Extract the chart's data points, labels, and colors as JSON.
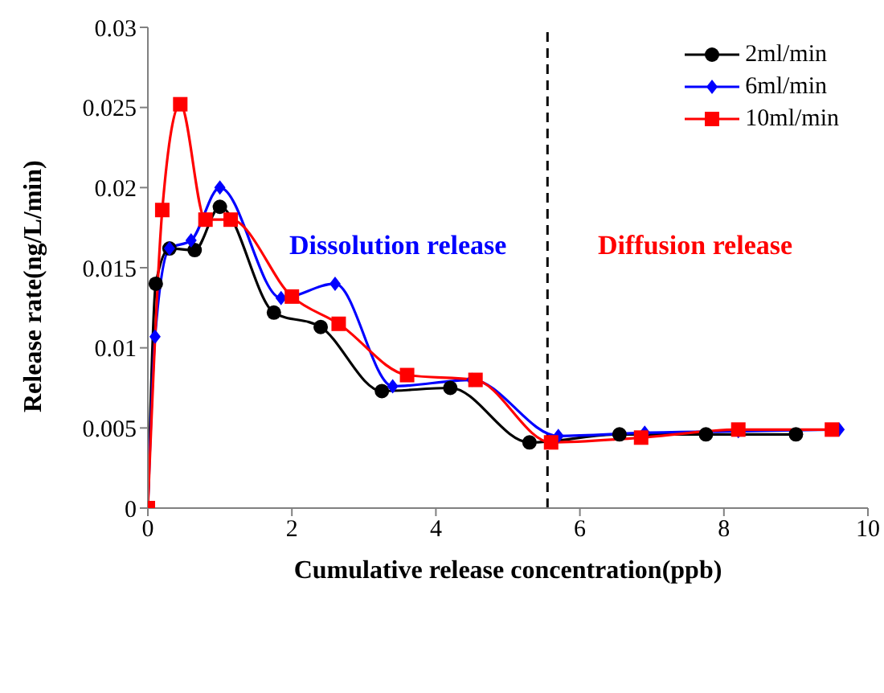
{
  "chart_data": {
    "type": "line",
    "xlabel": "Cumulative release concentration(ppb)",
    "ylabel": "Release rate(ng/L/min)",
    "xlim": [
      0,
      10
    ],
    "xticks": [
      0,
      2,
      4,
      6,
      8,
      10
    ],
    "ylim": [
      0,
      0.03
    ],
    "yticks": [
      0,
      0.005,
      0.01,
      0.015,
      0.02,
      0.025,
      0.03
    ],
    "legend": "top right",
    "series": [
      {
        "name": "2ml/min",
        "color": "#000000",
        "marker": "circle",
        "x": [
          0,
          0.11,
          0.3,
          0.65,
          1.0,
          1.75,
          2.4,
          3.25,
          4.2,
          5.3,
          6.55,
          7.75,
          9.0
        ],
        "values": [
          0,
          0.014,
          0.0162,
          0.0161,
          0.0188,
          0.0122,
          0.0113,
          0.0073,
          0.0075,
          0.0041,
          0.0046,
          0.0046,
          0.0046
        ]
      },
      {
        "name": "6ml/min",
        "color": "#0000ff",
        "marker": "diamond",
        "x": [
          0,
          0.1,
          0.3,
          0.6,
          1.0,
          1.85,
          2.6,
          3.4,
          4.5,
          5.7,
          6.9,
          8.2,
          9.6
        ],
        "values": [
          0,
          0.0107,
          0.0162,
          0.0167,
          0.02,
          0.0131,
          0.014,
          0.0076,
          0.008,
          0.0045,
          0.0047,
          0.0048,
          0.0049
        ]
      },
      {
        "name": "10ml/min",
        "color": "#ff0000",
        "marker": "square",
        "x": [
          0,
          0.2,
          0.45,
          0.8,
          1.15,
          2.0,
          2.65,
          3.6,
          4.55,
          5.6,
          6.85,
          8.2,
          9.5
        ],
        "values": [
          0,
          0.0186,
          0.0252,
          0.018,
          0.018,
          0.0132,
          0.0115,
          0.0083,
          0.008,
          0.0041,
          0.0044,
          0.0049,
          0.0049
        ]
      }
    ],
    "ref_lines": [
      {
        "axis": "x",
        "value": 5.55,
        "color": "#000000",
        "line_style": "dashed"
      }
    ],
    "annotations": [
      "Dissolution release",
      "Diffusion release"
    ]
  }
}
